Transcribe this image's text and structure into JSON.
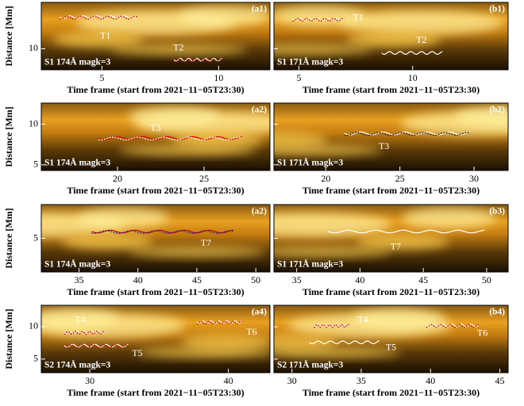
{
  "chart_data": [
    {
      "type": "image",
      "label": "(a1)",
      "caption": "S1 174Å magk=3",
      "xlabel": "Time frame (start from 2021−11−05T23:30)",
      "ylabel": "Distance [Mm]",
      "tracks": [
        "T1",
        "T2"
      ],
      "xlim": [
        2.4,
        12.2
      ],
      "xticks": [
        5,
        10
      ],
      "ylim": [
        7.5,
        15.5
      ],
      "yticks": [
        10
      ]
    },
    {
      "type": "image",
      "label": "(b1)",
      "caption": "S1 171Å magk=3",
      "xlabel": "Time frame (start from 2021−11−05T23:30)",
      "tracks": [
        "T1",
        "T2"
      ],
      "xlim": [
        3.9,
        14.2
      ],
      "xticks": [
        5,
        10
      ],
      "ylim": [
        7.5,
        15.5
      ],
      "yticks": [
        10
      ]
    },
    {
      "type": "image",
      "label": "(a2)",
      "caption": "S1 174Å magk=3",
      "xlabel": "Time frame (start from 2021−11−05T23:30)",
      "ylabel": "Distance [Mm]",
      "tracks": [
        "T3"
      ],
      "xlim": [
        15.6,
        28.8
      ],
      "xticks": [
        20,
        25
      ],
      "ylim": [
        4.3,
        12.6
      ],
      "yticks": [
        5,
        10
      ]
    },
    {
      "type": "image",
      "label": "(b2)",
      "caption": "S1 171Å magk=3",
      "xlabel": "Time frame (start from 2021−11−05T23:30)",
      "tracks": [
        "T3"
      ],
      "xlim": [
        16.5,
        32.3
      ],
      "xticks": [
        20,
        25,
        30
      ],
      "ylim": [
        4.3,
        12.6
      ],
      "yticks": [
        5,
        10
      ]
    },
    {
      "type": "image",
      "label": "(a2)",
      "caption": "S1 174Å magk=3",
      "xlabel": "Time frame (start from 2021−11−05T23:30)",
      "ylabel": "Distance [Mm]",
      "tracks": [
        "T7"
      ],
      "xlim": [
        31.8,
        51.2
      ],
      "xticks": [
        35,
        40,
        45,
        50
      ],
      "ylim": [
        2,
        8
      ],
      "yticks": [
        5
      ]
    },
    {
      "type": "image",
      "label": "(b3)",
      "caption": "S1 171Å magk=3",
      "xlabel": "Time frame (start from 2021−11−05T23:30)",
      "tracks": [
        "T7"
      ],
      "xlim": [
        33.2,
        51.7
      ],
      "xticks": [
        35,
        40,
        45,
        50
      ],
      "ylim": [
        2,
        8
      ],
      "yticks": [
        5
      ]
    },
    {
      "type": "image",
      "label": "(a4)",
      "caption": "S2 174Å magk=3",
      "xlabel": "Time frame (start from 2021−11−05T23:30)",
      "ylabel": "Distance [Mm]",
      "tracks": [
        "T4",
        "T5",
        "T6"
      ],
      "xlim": [
        26.5,
        43
      ],
      "xticks": [
        30,
        40
      ],
      "ylim": [
        2.9,
        13.3
      ],
      "yticks": [
        5,
        10
      ]
    },
    {
      "type": "image",
      "label": "(b4)",
      "caption": "S2 171Å magk=3",
      "xlabel": "Time frame (start from 2021−11−05T23:30)",
      "tracks": [
        "T4",
        "T5",
        "T6"
      ],
      "xlim": [
        28.7,
        45.6
      ],
      "xticks": [
        30,
        35,
        40,
        45
      ],
      "ylim": [
        2.9,
        13.3
      ],
      "yticks": [
        5,
        10
      ]
    }
  ]
}
